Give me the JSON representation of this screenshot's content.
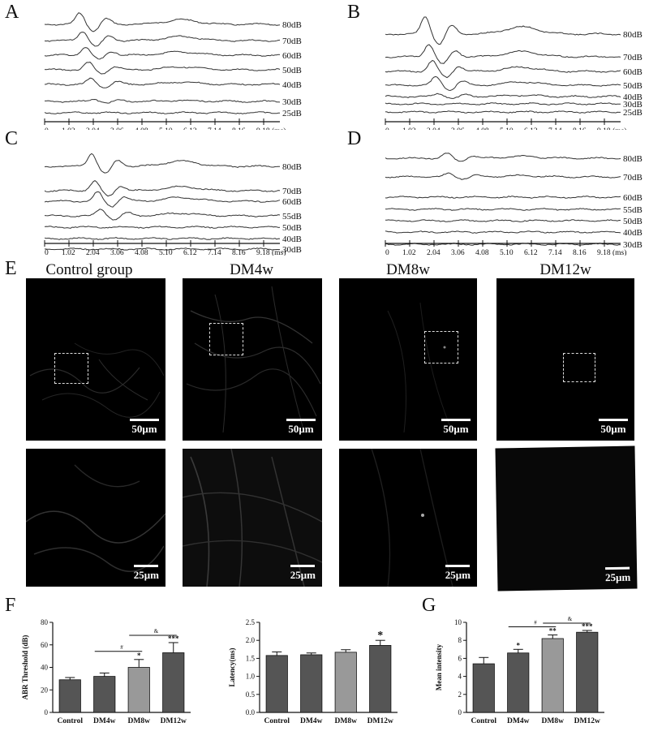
{
  "panels": {
    "A": "A",
    "B": "B",
    "C": "C",
    "D": "D",
    "E": "E",
    "F": "F",
    "G": "G"
  },
  "abr": {
    "time_ticks": [
      "0",
      "1.02",
      "2.04",
      "3.06",
      "4.08",
      "5.10",
      "6.12",
      "7.14",
      "8.16",
      "9.18"
    ],
    "time_unit": "(ms)",
    "A_levels": [
      "80dB",
      "70dB",
      "60dB",
      "50dB",
      "40dB",
      "30dB",
      "25dB"
    ],
    "B_levels": [
      "80dB",
      "70dB",
      "60dB",
      "50dB",
      "40dB",
      "30dB",
      "25dB"
    ],
    "C_levels": [
      "80dB",
      "70dB",
      "60dB",
      "55dB",
      "50dB",
      "40dB",
      "30dB"
    ],
    "D_levels": [
      "80dB",
      "70dB",
      "60dB",
      "55dB",
      "50dB",
      "40dB",
      "30dB"
    ]
  },
  "micro": {
    "titles": [
      "Control group",
      "DM4w",
      "DM8w",
      "DM12w"
    ],
    "scale_top": "50μm",
    "scale_bottom": "25μm"
  },
  "chart_data": [
    {
      "type": "bar",
      "categories": [
        "Control",
        "DM4w",
        "DM8w",
        "DM12w"
      ],
      "values": [
        29,
        32,
        40,
        53
      ],
      "errors": [
        2,
        3,
        7,
        9
      ],
      "ylabel": "ABR Threshold (dB)",
      "ylim": [
        0,
        80
      ],
      "yticks": [
        "0",
        "20",
        "40",
        "60",
        "80"
      ],
      "sig_above": [
        "",
        "",
        "*",
        "***"
      ],
      "brackets": [
        {
          "from": "DM4w",
          "to": "DM8w",
          "label": "#"
        },
        {
          "from": "DM8w",
          "to": "DM12w",
          "label": "&"
        }
      ],
      "colors": [
        "#555555",
        "#555555",
        "#999999",
        "#555555"
      ]
    },
    {
      "type": "bar",
      "categories": [
        "Control",
        "DM4w",
        "DM8w",
        "DM12w"
      ],
      "values": [
        1.58,
        1.6,
        1.67,
        1.86
      ],
      "errors": [
        0.1,
        0.05,
        0.07,
        0.14
      ],
      "ylabel": "Latency(ms)",
      "ylim": [
        0,
        2.5
      ],
      "yticks": [
        "0.0",
        "0.5",
        "1.0",
        "1.5",
        "2.0",
        "2.5"
      ],
      "sig_above": [
        "",
        "",
        "",
        "*"
      ],
      "brackets": [],
      "colors": [
        "#555555",
        "#555555",
        "#999999",
        "#555555"
      ]
    },
    {
      "type": "bar",
      "categories": [
        "Control",
        "DM4w",
        "DM8w",
        "DM12w"
      ],
      "values": [
        5.4,
        6.6,
        8.2,
        8.9
      ],
      "errors": [
        0.7,
        0.4,
        0.4,
        0.2
      ],
      "ylabel": "Mean intensity",
      "ylim": [
        0,
        10
      ],
      "yticks": [
        "0",
        "2",
        "4",
        "6",
        "8",
        "10"
      ],
      "sig_above": [
        "",
        "*",
        "**",
        "***"
      ],
      "brackets": [
        {
          "from": "DM4w",
          "to": "DM8w",
          "label": "#"
        },
        {
          "from": "DM8w",
          "to": "DM12w",
          "label": "&"
        }
      ],
      "colors": [
        "#555555",
        "#555555",
        "#999999",
        "#555555"
      ]
    }
  ]
}
